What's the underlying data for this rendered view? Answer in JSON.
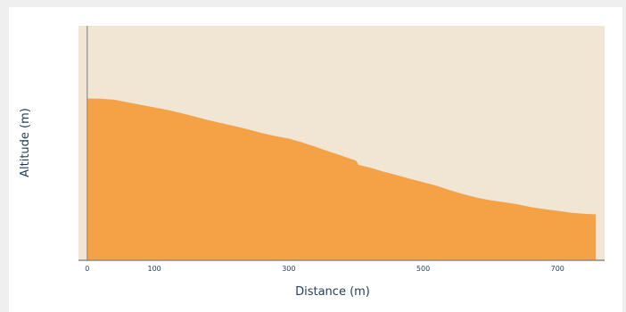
{
  "chart_data": {
    "type": "area",
    "xlabel": "Distance (m)",
    "ylabel": "Altitude (m)",
    "x_ticks": [
      0,
      100,
      300,
      500,
      700
    ],
    "xlim": [
      -13,
      770
    ],
    "ylim": [
      0,
      100
    ],
    "grid": false,
    "colors": {
      "plot_background": "#f0e6d3",
      "fill": "#f4a245",
      "axis": "#8c8c8c",
      "text": "#1f3d5a"
    },
    "series": [
      {
        "x": [
          0,
          20,
          40,
          60,
          80,
          100,
          120,
          140,
          160,
          180,
          200,
          220,
          240,
          260,
          280,
          300,
          320,
          340,
          360,
          380,
          400,
          404,
          420,
          440,
          460,
          480,
          500,
          520,
          540,
          560,
          580,
          600,
          620,
          640,
          660,
          680,
          700,
          720,
          740,
          757
        ],
        "y": [
          69.0,
          68.9,
          68.5,
          67.4,
          66.3,
          65.2,
          64.1,
          62.8,
          61.3,
          59.8,
          58.5,
          57.2,
          55.8,
          54.3,
          53.0,
          51.9,
          50.3,
          48.4,
          46.4,
          44.5,
          42.5,
          40.7,
          39.6,
          37.9,
          36.4,
          34.8,
          33.3,
          31.8,
          29.9,
          28.2,
          26.7,
          25.6,
          24.8,
          23.9,
          22.7,
          21.8,
          21.1,
          20.3,
          19.8,
          19.6
        ]
      }
    ]
  }
}
